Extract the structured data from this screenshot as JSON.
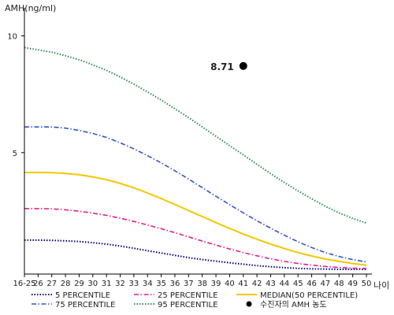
{
  "chart_data": {
    "type": "line",
    "ylabel": "AMH(ng/ml)",
    "xlabel": "나이",
    "x_ticks": [
      "16-25",
      "26",
      "27",
      "28",
      "29",
      "30",
      "31",
      "32",
      "33",
      "34",
      "35",
      "36",
      "37",
      "38",
      "39",
      "40",
      "41",
      "42",
      "43",
      "44",
      "45",
      "46",
      "47",
      "48",
      "49",
      "50"
    ],
    "y_ticks": [
      5,
      10
    ],
    "ylim": [
      0,
      11.2
    ],
    "grid": false,
    "series": [
      {
        "name": "5 PERCENTILE",
        "color": "#000080",
        "style": "dotted",
        "values": [
          1.25,
          1.25,
          1.24,
          1.22,
          1.19,
          1.14,
          1.08,
          1.0,
          0.9,
          0.8,
          0.7,
          0.6,
          0.5,
          0.42,
          0.35,
          0.28,
          0.22,
          0.16,
          0.11,
          0.07,
          0.04,
          0.02,
          0.01,
          0.0,
          0.0,
          0.0
        ]
      },
      {
        "name": "75 PERCENTILE",
        "color": "#3355cc",
        "style": "dash-dot",
        "values": [
          6.1,
          6.1,
          6.1,
          6.05,
          5.95,
          5.82,
          5.65,
          5.42,
          5.16,
          4.87,
          4.56,
          4.22,
          3.87,
          3.5,
          3.13,
          2.77,
          2.42,
          2.08,
          1.76,
          1.46,
          1.18,
          0.93,
          0.72,
          0.55,
          0.42,
          0.32
        ]
      },
      {
        "name": "25 PERCENTILE",
        "color": "#e0208c",
        "style": "dash-dot",
        "values": [
          2.6,
          2.6,
          2.59,
          2.55,
          2.49,
          2.41,
          2.31,
          2.19,
          2.05,
          1.9,
          1.74,
          1.57,
          1.39,
          1.21,
          1.04,
          0.87,
          0.72,
          0.58,
          0.45,
          0.34,
          0.25,
          0.18,
          0.12,
          0.08,
          0.05,
          0.03
        ]
      },
      {
        "name": "95 PERCENTILE",
        "color": "#2e8b57",
        "style": "dotted",
        "values": [
          9.5,
          9.4,
          9.3,
          9.15,
          8.98,
          8.76,
          8.52,
          8.24,
          7.93,
          7.6,
          7.25,
          6.88,
          6.5,
          6.1,
          5.7,
          5.3,
          4.9,
          4.5,
          4.1,
          3.72,
          3.36,
          3.02,
          2.7,
          2.42,
          2.18,
          1.98
        ]
      },
      {
        "name": "MEDIAN(50 PERCENTILE)",
        "color": "#f2c800",
        "style": "solid",
        "values": [
          4.15,
          4.15,
          4.14,
          4.11,
          4.05,
          3.96,
          3.84,
          3.68,
          3.49,
          3.27,
          3.03,
          2.78,
          2.52,
          2.26,
          2.0,
          1.75,
          1.51,
          1.29,
          1.08,
          0.89,
          0.72,
          0.57,
          0.44,
          0.34,
          0.25,
          0.18
        ]
      }
    ],
    "points": [
      {
        "name": "수진자의 AMH 농도",
        "x": "41",
        "y": 8.71,
        "label": "8.71",
        "color": "#000000"
      }
    ],
    "legend_order": [
      "5 PERCENTILE",
      "25 PERCENTILE",
      "MEDIAN(50 PERCENTILE)",
      "75 PERCENTILE",
      "95 PERCENTILE",
      "수진자의 AMH 농도"
    ],
    "legend_position": "bottom"
  }
}
